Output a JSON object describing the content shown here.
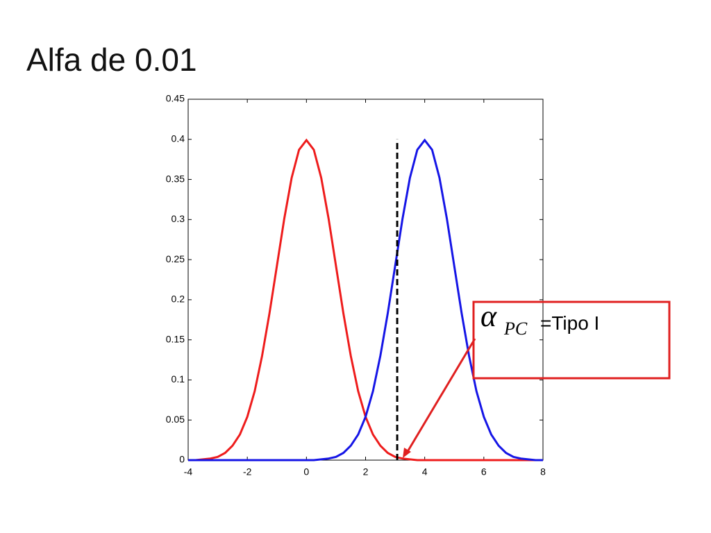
{
  "chart_data": {
    "type": "line",
    "title": "Alfa de 0.01",
    "x": [
      -4,
      -3.75,
      -3.5,
      -3.25,
      -3,
      -2.75,
      -2.5,
      -2.25,
      -2,
      -1.75,
      -1.5,
      -1.25,
      -1,
      -0.75,
      -0.5,
      -0.25,
      0,
      0.25,
      0.5,
      0.75,
      1,
      1.25,
      1.5,
      1.75,
      2,
      2.25,
      2.5,
      2.75,
      3,
      3.25,
      3.5,
      3.75,
      4,
      4.25,
      4.5,
      4.75,
      5,
      5.25,
      5.5,
      5.75,
      6,
      6.25,
      6.5,
      6.75,
      7,
      7.25,
      7.5,
      7.75,
      8
    ],
    "series": [
      {
        "color": "#ee1c1c",
        "values": [
          0,
          0,
          0.001,
          0.002,
          0.004,
          0.009,
          0.018,
          0.032,
          0.054,
          0.086,
          0.13,
          0.183,
          0.242,
          0.301,
          0.352,
          0.387,
          0.399,
          0.387,
          0.352,
          0.301,
          0.242,
          0.183,
          0.13,
          0.086,
          0.054,
          0.032,
          0.018,
          0.009,
          0.004,
          0.002,
          0.001,
          0,
          0,
          0,
          0,
          0,
          0,
          0,
          0,
          0,
          0,
          0,
          0,
          0,
          0,
          0,
          0,
          0,
          0
        ]
      },
      {
        "color": "#1515e6",
        "values": [
          0,
          0,
          0,
          0,
          0,
          0,
          0,
          0,
          0,
          0,
          0,
          0,
          0,
          0,
          0,
          0,
          0,
          0,
          0.001,
          0.002,
          0.004,
          0.009,
          0.018,
          0.032,
          0.054,
          0.086,
          0.13,
          0.183,
          0.242,
          0.301,
          0.352,
          0.387,
          0.399,
          0.387,
          0.352,
          0.301,
          0.242,
          0.183,
          0.13,
          0.086,
          0.054,
          0.032,
          0.018,
          0.009,
          0.004,
          0.002,
          0.001,
          0,
          0
        ]
      }
    ],
    "critical_line": {
      "x": 3.07,
      "top": 0.4
    },
    "xlim": [
      -4,
      8
    ],
    "xticks": [
      -4,
      -2,
      0,
      2,
      4,
      6,
      8
    ],
    "ylim": [
      0,
      0.45
    ],
    "yticks": [
      0,
      0.05,
      0.1,
      0.15,
      0.2,
      0.25,
      0.3,
      0.35,
      0.4,
      0.45
    ],
    "annotation": {
      "symbol": "α",
      "subscript": "PC",
      "text": "=Tipo I"
    }
  }
}
